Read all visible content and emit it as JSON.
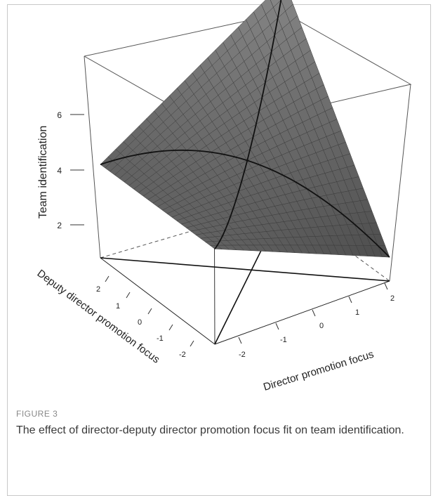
{
  "figure": {
    "label": "FIGURE 3",
    "caption": "The effect of director-deputy director promotion focus fit on team identification."
  },
  "chart_data": {
    "type": "surface",
    "zlabel": "Team identification",
    "xlabel": "Director promotion focus",
    "ylabel": "Deputy director promotion focus",
    "z_ticks": [
      "2",
      "4",
      "6"
    ],
    "x_ticks": [
      "-2",
      "-1",
      "0",
      "1",
      "2"
    ],
    "y_ticks": [
      "-2",
      "-1",
      "0",
      "1",
      "2"
    ],
    "x_range": [
      -2.5,
      2.5
    ],
    "y_range": [
      -2.5,
      2.5
    ],
    "z_range": [
      1.5,
      7.5
    ],
    "corners": [
      {
        "director": -2.5,
        "deputy": 2.5,
        "team_identification": 3.85
      },
      {
        "director": 2.5,
        "deputy": 2.5,
        "team_identification": 7.1
      },
      {
        "director": 2.5,
        "deputy": -2.5,
        "team_identification": 2.1
      },
      {
        "director": -2.5,
        "deputy": -2.5,
        "team_identification": 3.9
      }
    ],
    "center_value": 4.3,
    "surface_color": "#5c5c5c"
  }
}
